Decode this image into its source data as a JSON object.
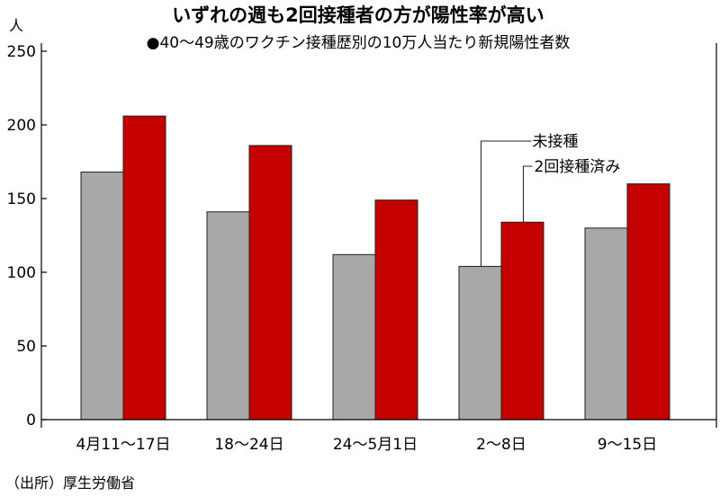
{
  "chart_data": {
    "type": "bar",
    "title": "いずれの週も2回接種者の方が陽性率が高い",
    "subtitle": "●40〜49歳のワクチン接種歴別の10万人当たり新規陽性者数",
    "ylabel": "人",
    "ylim": [
      0,
      250
    ],
    "yticks": [
      0,
      50,
      100,
      150,
      200,
      250
    ],
    "categories": [
      "4月11〜17日",
      "18〜24日",
      "24〜5月1日",
      "2〜8日",
      "9〜15日"
    ],
    "series": [
      {
        "name": "未接種",
        "color": "#a8a8a8",
        "values": [
          168,
          141,
          112,
          104,
          130
        ]
      },
      {
        "name": "2回接種済み",
        "color": "#c40000",
        "values": [
          206,
          186,
          149,
          134,
          160
        ]
      }
    ],
    "grid": false,
    "legend": "callout",
    "source": "（出所）厚生労働省"
  }
}
